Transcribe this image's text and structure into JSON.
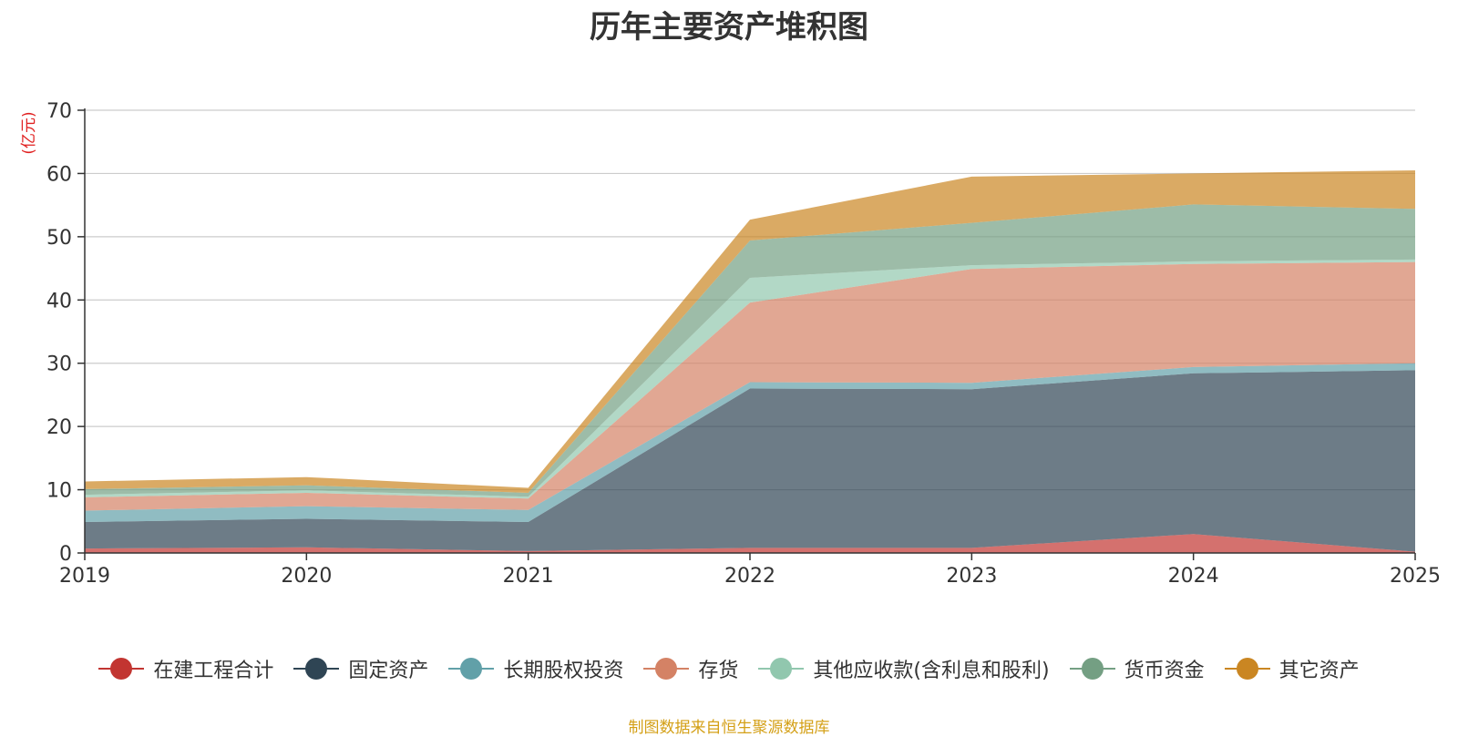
{
  "chart_data": {
    "type": "area",
    "stacked": true,
    "title": "历年主要资产堆积图",
    "ylabel": "(亿元)",
    "xlabel": "",
    "x": [
      "2019",
      "2020",
      "2021",
      "2022",
      "2023",
      "2024",
      "2025"
    ],
    "ylim": [
      0,
      70
    ],
    "yticks": [
      0,
      10,
      20,
      30,
      40,
      50,
      60,
      70
    ],
    "grid": true,
    "legend_position": "bottom",
    "series": [
      {
        "name": "在建工程合计",
        "color": "#c23531",
        "values": [
          0.7,
          0.9,
          0.3,
          0.8,
          0.8,
          3.0,
          0.2
        ]
      },
      {
        "name": "固定资产",
        "color": "#2f4554",
        "values": [
          4.2,
          4.5,
          4.6,
          25.2,
          25.1,
          25.4,
          28.7
        ]
      },
      {
        "name": "长期股权投资",
        "color": "#61a0a8",
        "values": [
          1.8,
          2.0,
          1.9,
          1.0,
          1.0,
          1.0,
          1.1
        ]
      },
      {
        "name": "存货",
        "color": "#d48265",
        "values": [
          2.1,
          2.1,
          1.8,
          12.6,
          18.0,
          16.3,
          16.0
        ]
      },
      {
        "name": "其他应收款(含利息和股利)",
        "color": "#91c7ae",
        "values": [
          0.4,
          0.4,
          0.3,
          3.9,
          0.6,
          0.4,
          0.4
        ]
      },
      {
        "name": "货币资金",
        "color": "#749f83",
        "values": [
          0.9,
          0.8,
          0.6,
          5.9,
          6.7,
          9.0,
          8.0
        ]
      },
      {
        "name": "其它资产",
        "color": "#ca8622",
        "values": [
          1.2,
          1.3,
          0.8,
          3.3,
          7.3,
          4.9,
          6.1
        ]
      }
    ]
  },
  "source_note": "制图数据来自恒生聚源数据库"
}
